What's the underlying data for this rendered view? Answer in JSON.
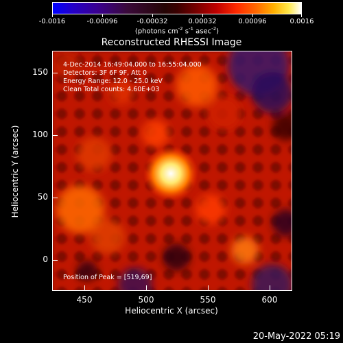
{
  "colorbar": {
    "ticks": [
      "-0.0016",
      "-0.00096",
      "-0.00032",
      "0.00032",
      "0.00096",
      "0.0016"
    ],
    "units_main": "(photons cm",
    "units_exp1": "-2",
    "units_mid": " s",
    "units_exp2": "-1",
    "units_end": " asec",
    "units_exp3": "-2",
    "units_close": ")"
  },
  "title": "Reconstructed RHESSI Image",
  "annotations": {
    "line1": "4-Dec-2014 16:49:04.000 to 16:55:04.000",
    "line2": "Detectors: 3F 6F 9F, Att 0",
    "line3": "Energy Range: 12.0 - 25.0 keV",
    "line4": "Clean    Total counts: 4.60E+03",
    "peak": "Position of Peak = [519,69]"
  },
  "axes": {
    "xlabel": "Heliocentric X (arcsec)",
    "ylabel": "Heliocentric Y (arcsec)",
    "xticks": [
      "450",
      "500",
      "550",
      "600"
    ],
    "yticks": [
      "150",
      "100",
      "50",
      "0"
    ]
  },
  "timestamp": "20-May-2022 05:19"
}
